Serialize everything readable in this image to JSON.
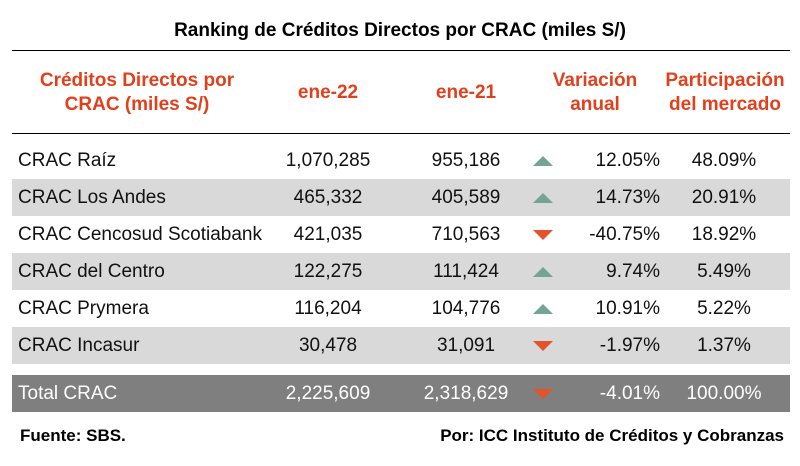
{
  "title": "Ranking de Créditos Directos por CRAC (miles S/)",
  "headers": {
    "name": "Créditos Directos por CRAC (miles S/)",
    "col1": "ene-22",
    "col2": "ene-21",
    "variation": "Variación anual",
    "share": "Participación del mercado"
  },
  "colors": {
    "header_text": "#e2401c",
    "up": "#74a496",
    "down": "#e2542b",
    "row_shade": "#d9d9d9",
    "total_row": "#7f7f7f"
  },
  "rows": [
    {
      "name": "CRAC Raíz",
      "v1": "1,070,285",
      "v2": "955,186",
      "trend": "up",
      "variation": "12.05%",
      "share": "48.09%"
    },
    {
      "name": "CRAC Los Andes",
      "v1": "465,332",
      "v2": "405,589",
      "trend": "up",
      "variation": "14.73%",
      "share": "20.91%"
    },
    {
      "name": "CRAC Cencosud Scotiabank",
      "v1": "421,035",
      "v2": "710,563",
      "trend": "down",
      "variation": "-40.75%",
      "share": "18.92%"
    },
    {
      "name": "CRAC del Centro",
      "v1": "122,275",
      "v2": "111,424",
      "trend": "up",
      "variation": "9.74%",
      "share": "5.49%"
    },
    {
      "name": "CRAC Prymera",
      "v1": "116,204",
      "v2": "104,776",
      "trend": "up",
      "variation": "10.91%",
      "share": "5.22%"
    },
    {
      "name": "CRAC Incasur",
      "v1": "30,478",
      "v2": "31,091",
      "trend": "down",
      "variation": "-1.97%",
      "share": "1.37%"
    }
  ],
  "total": {
    "name": "Total CRAC",
    "v1": "2,225,609",
    "v2": "2,318,629",
    "trend": "down",
    "variation": "-4.01%",
    "share": "100.00%"
  },
  "footer": {
    "source": "Fuente: SBS.",
    "author": "Por: ICC Instituto de Créditos y Cobranzas"
  }
}
